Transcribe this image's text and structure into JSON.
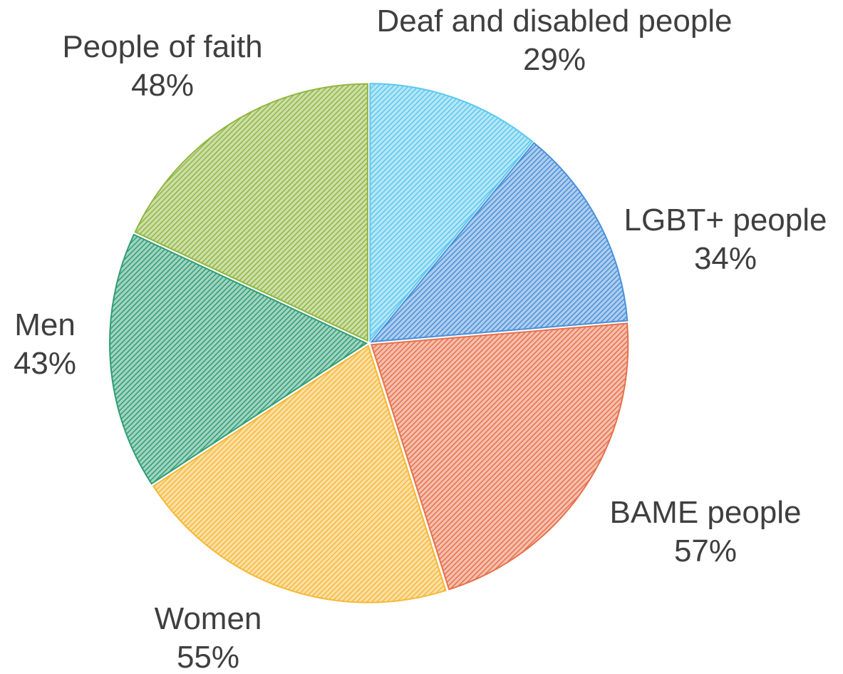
{
  "chart_data": {
    "type": "pie",
    "title": "",
    "slices": [
      {
        "label": "Deaf and disabled people",
        "value": 29,
        "value_label": "29%",
        "color": "#5bc8ee",
        "label_anchor": "middle"
      },
      {
        "label": "LGBT+ people",
        "value": 34,
        "value_label": "34%",
        "color": "#4a90d9",
        "label_anchor": "middle"
      },
      {
        "label": "BAME people",
        "value": 57,
        "value_label": "57%",
        "color": "#e8704a",
        "label_anchor": "middle"
      },
      {
        "label": "Women",
        "value": 55,
        "value_label": "55%",
        "color": "#f7b836",
        "label_anchor": "middle"
      },
      {
        "label": "Men",
        "value": 43,
        "value_label": "43%",
        "color": "#2e9e74",
        "label_anchor": "middle"
      },
      {
        "label": "People of faith",
        "value": 48,
        "value_label": "48%",
        "color": "#8fb640",
        "label_anchor": "middle"
      }
    ],
    "start_angle": "12 o'clock",
    "direction": "clockwise",
    "legend": "none",
    "fill_style": "diagonal-hatch"
  }
}
